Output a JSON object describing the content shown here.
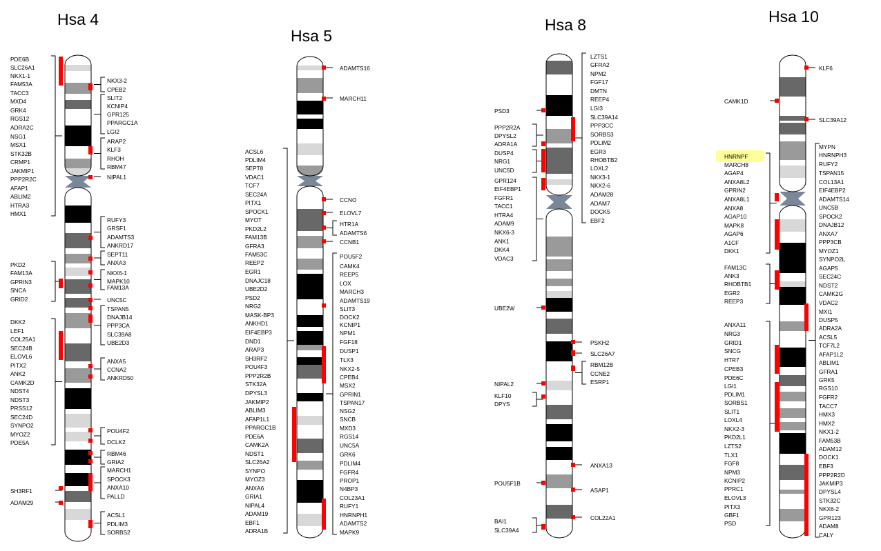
{
  "chromosomes": [
    {
      "title": "Hsa 4",
      "left_genes": [
        "PDE6B",
        "SLC26A1",
        "NKX1-1",
        "FAM53A",
        "TACC3",
        "MXD4",
        "GRK4",
        "RGS12",
        "ADRA2C",
        "NSG1",
        "MSX1",
        "STK32B",
        "CRMP1",
        "JAKMIP1",
        "PPP2R2C",
        "AFAP1",
        "ABLIM2",
        "HTRA3",
        "HMX1",
        "PKD2",
        "FAM13A",
        "GPRIN3",
        "SNCA",
        "GRID2",
        "DKK2",
        "LEF1",
        "COL25A1",
        "SEC24B",
        "ELOVL6",
        "PITX2",
        "ANK2",
        "CAMK2D",
        "NDST4",
        "NDST3",
        "PRSS12",
        "SEC24D",
        "SYNPO2",
        "MYOZ2",
        "PDE5A",
        "SH3RF1",
        "ADAM29"
      ],
      "right_genes": [
        "NKX3-2",
        "CPEB2",
        "SLIT2",
        "KCNIP4",
        "GPR125",
        "PPARGC1A",
        "LGI2",
        "ARAP2",
        "KLF3",
        "RHOH",
        "RBM47",
        "NIPAL1",
        "RUFY3",
        "GRSF1",
        "ADAMTS3",
        "ANKRD17",
        "SEPT11",
        "ANXA3",
        "NKX6-1",
        "MAPK10",
        "FAM13A",
        "UNC5C",
        "TSPAN5",
        "DNAJB14",
        "PPP3CA",
        "SLC39A8",
        "UBE2D3",
        "ANXA5",
        "CCNA2",
        "ANKRD50",
        "POU4F2",
        "DCLK2",
        "RBM46",
        "GRIA2",
        "MARCH1",
        "SPOCK3",
        "ANXA10",
        "PALLD",
        "ACSL1",
        "PDLIM3",
        "SORBS2"
      ]
    },
    {
      "title": "Hsa 5",
      "left_genes": [
        "ACSL6",
        "PDLIM4",
        "SEPT8",
        "VDAC1",
        "TCF7",
        "SEC24A",
        "PITX1",
        "SPOCK1",
        "MYOT",
        "PKD2L2",
        "FAM13B",
        "GFRA3",
        "FAM53C",
        "REEP2",
        "EGR1",
        "DNAJC18",
        "UBE2D2",
        "PSD2",
        "NRG2",
        "MASK-BP3",
        "ANKHD1",
        "EIF4EBP3",
        "DND1",
        "ARAP3",
        "SH3RF2",
        "POU4F3",
        "PPP2R2B",
        "STK32A",
        "DPYSL3",
        "JAKMIP2",
        "ABLIM3",
        "AFAP1L1",
        "PPARGC1B",
        "PDE6A",
        "CAMK2A",
        "NDST1",
        "SLC26A2",
        "SYNPO",
        "MYOZ3",
        "ANXA6",
        "GRIA1",
        "NIPAL4",
        "ADAM19",
        "EBF1",
        "ADRA1B"
      ],
      "right_genes": [
        "ADAMTS16",
        "MARCH11",
        "CCNO",
        "ELOVL7",
        "HTR1A",
        "ADAMTS6",
        "CCNB1",
        "POU5F2",
        "CAMK4",
        "REEP5",
        "LOX",
        "MARCH3",
        "ADAMTS19",
        "SLIT3",
        "DOCK2",
        "KCNIP1",
        "NPM1",
        "FGF18",
        "DUSP1",
        "TLX3",
        "NKX2-5",
        "CPEB4",
        "MSX2",
        "GPRIN1",
        "TSPAN17",
        "NSG2",
        "SNCB",
        "MXD3",
        "RGS14",
        "UNC5A",
        "GRK6",
        "PDLIM4",
        "FGFR4",
        "PROP1",
        "N4BP3",
        "COL23A1",
        "RUFY1",
        "HNRNPH1",
        "ADAMTS2",
        "MAPK9"
      ]
    },
    {
      "title": "Hsa 8",
      "left_genes": [
        "PSD3",
        "PPP2R2A",
        "DPYSL2",
        "ADRA1A",
        "DUSP4",
        "NRG1",
        "UNC5D",
        "GPR124",
        "EIF4EBP1",
        "FGFR1",
        "TACC1",
        "HTRA4",
        "ADAM9",
        "NKX6-3",
        "ANK1",
        "DKK4",
        "VDAC3",
        "UBE2W",
        "NIPAL2",
        "KLF10",
        "DPYS",
        "POU5F1B",
        "BAI1",
        "SLC39A4"
      ],
      "right_genes": [
        "LZTS1",
        "GFRA2",
        "NPM2",
        "FGF17",
        "DMTN",
        "REEP4",
        "LGI3",
        "SLC39A14",
        "PPP3CC",
        "SORBS3",
        "PDLIM2",
        "EGR3",
        "RHOBTB2",
        "LOXL2",
        "NKX3-1",
        "NKX2-6",
        "ADAM28",
        "ADAM7",
        "DOCK5",
        "EBF2",
        "PSKH2",
        "SLC26A7",
        "RBM12B",
        "CCNE2",
        "ESRP1",
        "ANXA13",
        "ASAP1",
        "COL22A1"
      ]
    },
    {
      "title": "Hsa 10",
      "left_genes": [
        "CAMK1D",
        "HNRNPF",
        "MARCH8",
        "AGAP4",
        "ANXA8L2",
        "GPRIN2",
        "ANXA8L1",
        "ANXA8",
        "AGAP10",
        "MAPK8",
        "AGAP6",
        "A1CF",
        "DKK1",
        "FAM13C",
        "ANK3",
        "RHOBTB1",
        "EGR2",
        "REEP3",
        "ANXA11",
        "NRG3",
        "GRID1",
        "SNCG",
        "HTR7",
        "CPEB3",
        "PDE6C",
        "LGI1",
        "PDLIM1",
        "SORBS1",
        "SLIT1",
        "LOXL4",
        "NKX2-3",
        "PKD2L1",
        "LZTS2",
        "TLX1",
        "FGF8",
        "NPM3",
        "KCNIP2",
        "PPRC1",
        "ELOVL3",
        "PITX3",
        "GBF1",
        "PSD"
      ],
      "right_genes": [
        "KLF6",
        "SLC39A12",
        "MYPN",
        "HNRNPH3",
        "RUFY2",
        "TSPAN15",
        "COL13A1",
        "EIF4EBP2",
        "ADAMTS14",
        "UNC5B",
        "SPOCK2",
        "DNAJB12",
        "ANXA7",
        "PPP3CB",
        "MYOZ1",
        "SYNPO2L",
        "AGAP5",
        "SEC24C",
        "NDST2",
        "CAMK2G",
        "VDAC2",
        "MXI1",
        "DUSP5",
        "ADRA2A",
        "ACSL5",
        "TCF7L2",
        "AFAP1L2",
        "ABLIM1",
        "GFRA1",
        "GRK5",
        "RGS10",
        "FGFR2",
        "TACC7",
        "HMX3",
        "HMX2",
        "NKX1-2",
        "FAM53B",
        "ADAM12",
        "DOCK1",
        "EBF3",
        "PPP2R2D",
        "JAKMIP3",
        "DPYSL4",
        "STK32C",
        "NKX6-2",
        "GPR123",
        "ADAM8",
        "CALY"
      ]
    }
  ],
  "colors": {
    "marker": "#ff0000",
    "highlight": "#ffff99",
    "black": "#000000",
    "dark_gray": "#686868",
    "mid_gray": "#9a9a9a",
    "light_gray": "#d8d8d8",
    "centromere": "#7a8799"
  }
}
